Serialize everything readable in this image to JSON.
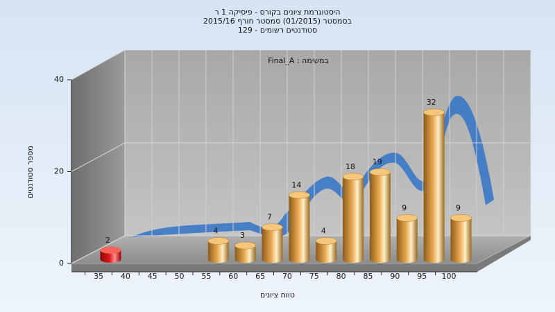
{
  "chart_data": {
    "type": "bar",
    "title": [
      "היסטוגרמת ציונים בקורס - פיסיקה 1 ר",
      "בסמסטר (01/2015) סמסטר חורף 2015/16",
      "סטודנטים רשומים - 129"
    ],
    "annotation": "Final_A : במשימה",
    "x_label": "טווח ציונים",
    "y_label": "מספר סטודנטים",
    "categories": [
      "35",
      "40",
      "45",
      "50",
      "55",
      "60",
      "65",
      "70",
      "75",
      "80",
      "85",
      "90",
      "95",
      "100"
    ],
    "values": [
      2,
      0,
      0,
      0,
      4,
      3,
      7,
      14,
      4,
      18,
      19,
      9,
      32,
      9
    ],
    "colors": [
      "#e01818",
      "#e8a850",
      "#e8a850",
      "#e8a850",
      "#e8a850",
      "#e8a850",
      "#e8a850",
      "#e8a850",
      "#e8a850",
      "#e8a850",
      "#e8a850",
      "#e8a850",
      "#e8a850",
      "#e8a850"
    ],
    "ylim": [
      0,
      40
    ],
    "yticks": [
      0,
      20,
      40
    ],
    "grid": true
  }
}
